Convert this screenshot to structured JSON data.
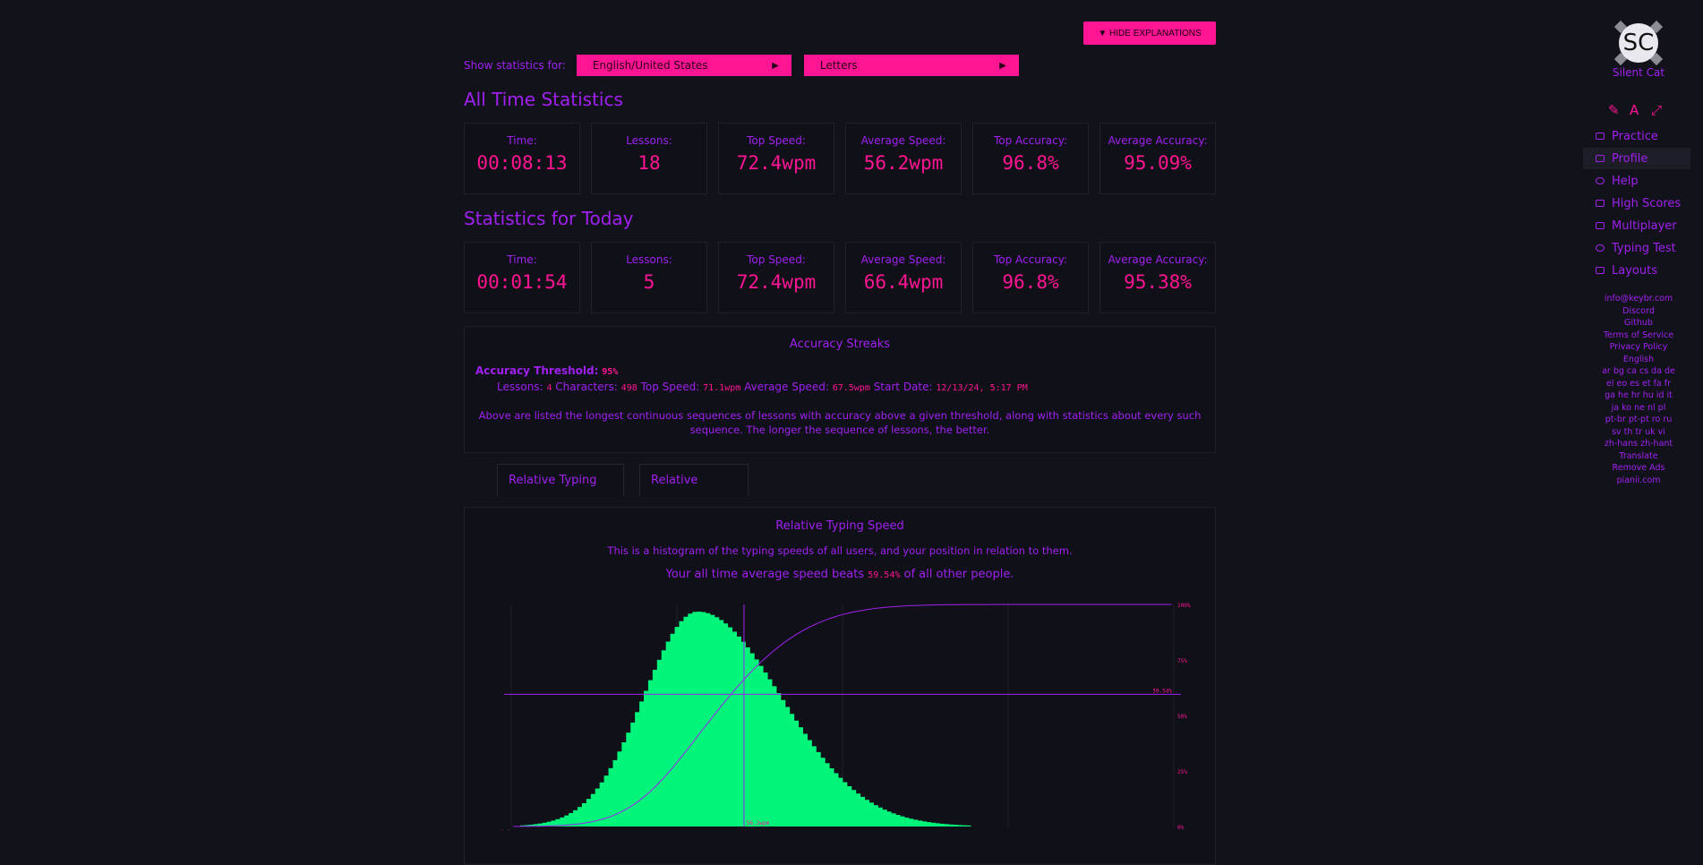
{
  "header": {
    "hide_button": "▼ HIDE EXPLANATIONS",
    "filter_label": "Show statistics for:",
    "layout_select": "English/United States",
    "mode_select": "Letters",
    "select_arrow": "▶"
  },
  "all_time": {
    "title": "All Time Statistics",
    "stats": [
      {
        "label": "Time:",
        "value": "00:08:13"
      },
      {
        "label": "Lessons:",
        "value": "18"
      },
      {
        "label": "Top Speed:",
        "value": "72.4wpm"
      },
      {
        "label": "Average Speed:",
        "value": "56.2wpm"
      },
      {
        "label": "Top Accuracy:",
        "value": "96.8%"
      },
      {
        "label": "Average Accuracy:",
        "value": "95.09%"
      }
    ]
  },
  "today": {
    "title": "Statistics for Today",
    "stats": [
      {
        "label": "Time:",
        "value": "00:01:54"
      },
      {
        "label": "Lessons:",
        "value": "5"
      },
      {
        "label": "Top Speed:",
        "value": "72.4wpm"
      },
      {
        "label": "Average Speed:",
        "value": "66.4wpm"
      },
      {
        "label": "Top Accuracy:",
        "value": "96.8%"
      },
      {
        "label": "Average Accuracy:",
        "value": "95.38%"
      }
    ]
  },
  "streaks": {
    "title": "Accuracy Streaks",
    "threshold_label": "Accuracy Threshold:",
    "threshold_value": "95%",
    "lessons_label": "Lessons:",
    "lessons_value": "4",
    "characters_label": "Characters:",
    "characters_value": "498",
    "top_speed_label": "Top Speed:",
    "top_speed_value": "71.1wpm",
    "avg_speed_label": "Average Speed:",
    "avg_speed_value": "67.5wpm",
    "start_label": "Start Date:",
    "start_value": "12/13/24, 5:17 PM",
    "explanation": "Above are listed the longest continuous sequences of lessons with accuracy above a given threshold, along with statistics about every such sequence. The longer the sequence of lessons, the better."
  },
  "tabs": [
    "Relative Typing Speed",
    "Relative Accuracy"
  ],
  "relative": {
    "title": "Relative Typing Speed",
    "description": "This is a histogram of the typing speeds of all users, and your position in relation to them.",
    "beats_prefix": "Your all time average speed beats",
    "beats_value": "59.54%",
    "beats_suffix": "of all other people."
  },
  "chart_data": {
    "type": "area",
    "distribution": {
      "mean": 45,
      "sigma_left": 13,
      "sigma_right": 20
    },
    "marker_speed": "56.2wpm",
    "marker_percent": "59.54%",
    "right_ticks": [
      "100%",
      "75%",
      "50%",
      "25%",
      "0%"
    ],
    "x_tick_left": "0.0wpm",
    "colors": {
      "histogram": "#00f57a",
      "cumulative": "#a020f0",
      "marker": "#a020f0"
    }
  },
  "sidebar": {
    "avatar_initials": "SC",
    "username": "Silent Cat",
    "nav": [
      "Practice",
      "Profile",
      "Help",
      "High Scores",
      "Multiplayer",
      "Typing Test",
      "Layouts"
    ],
    "links": [
      "info@keybr.com",
      "Discord",
      "Github",
      "Terms of Service",
      "Privacy Policy",
      "English",
      "ar bg ca cs da de",
      "el eo es et fa fr",
      "ga he hr hu id it",
      "ja ko ne nl pl",
      "pt-br pt-pt ro ru",
      "sv th tr uk vi",
      "zh-hans zh-hant",
      "Translate",
      "Remove Ads",
      "pianii.com"
    ]
  }
}
